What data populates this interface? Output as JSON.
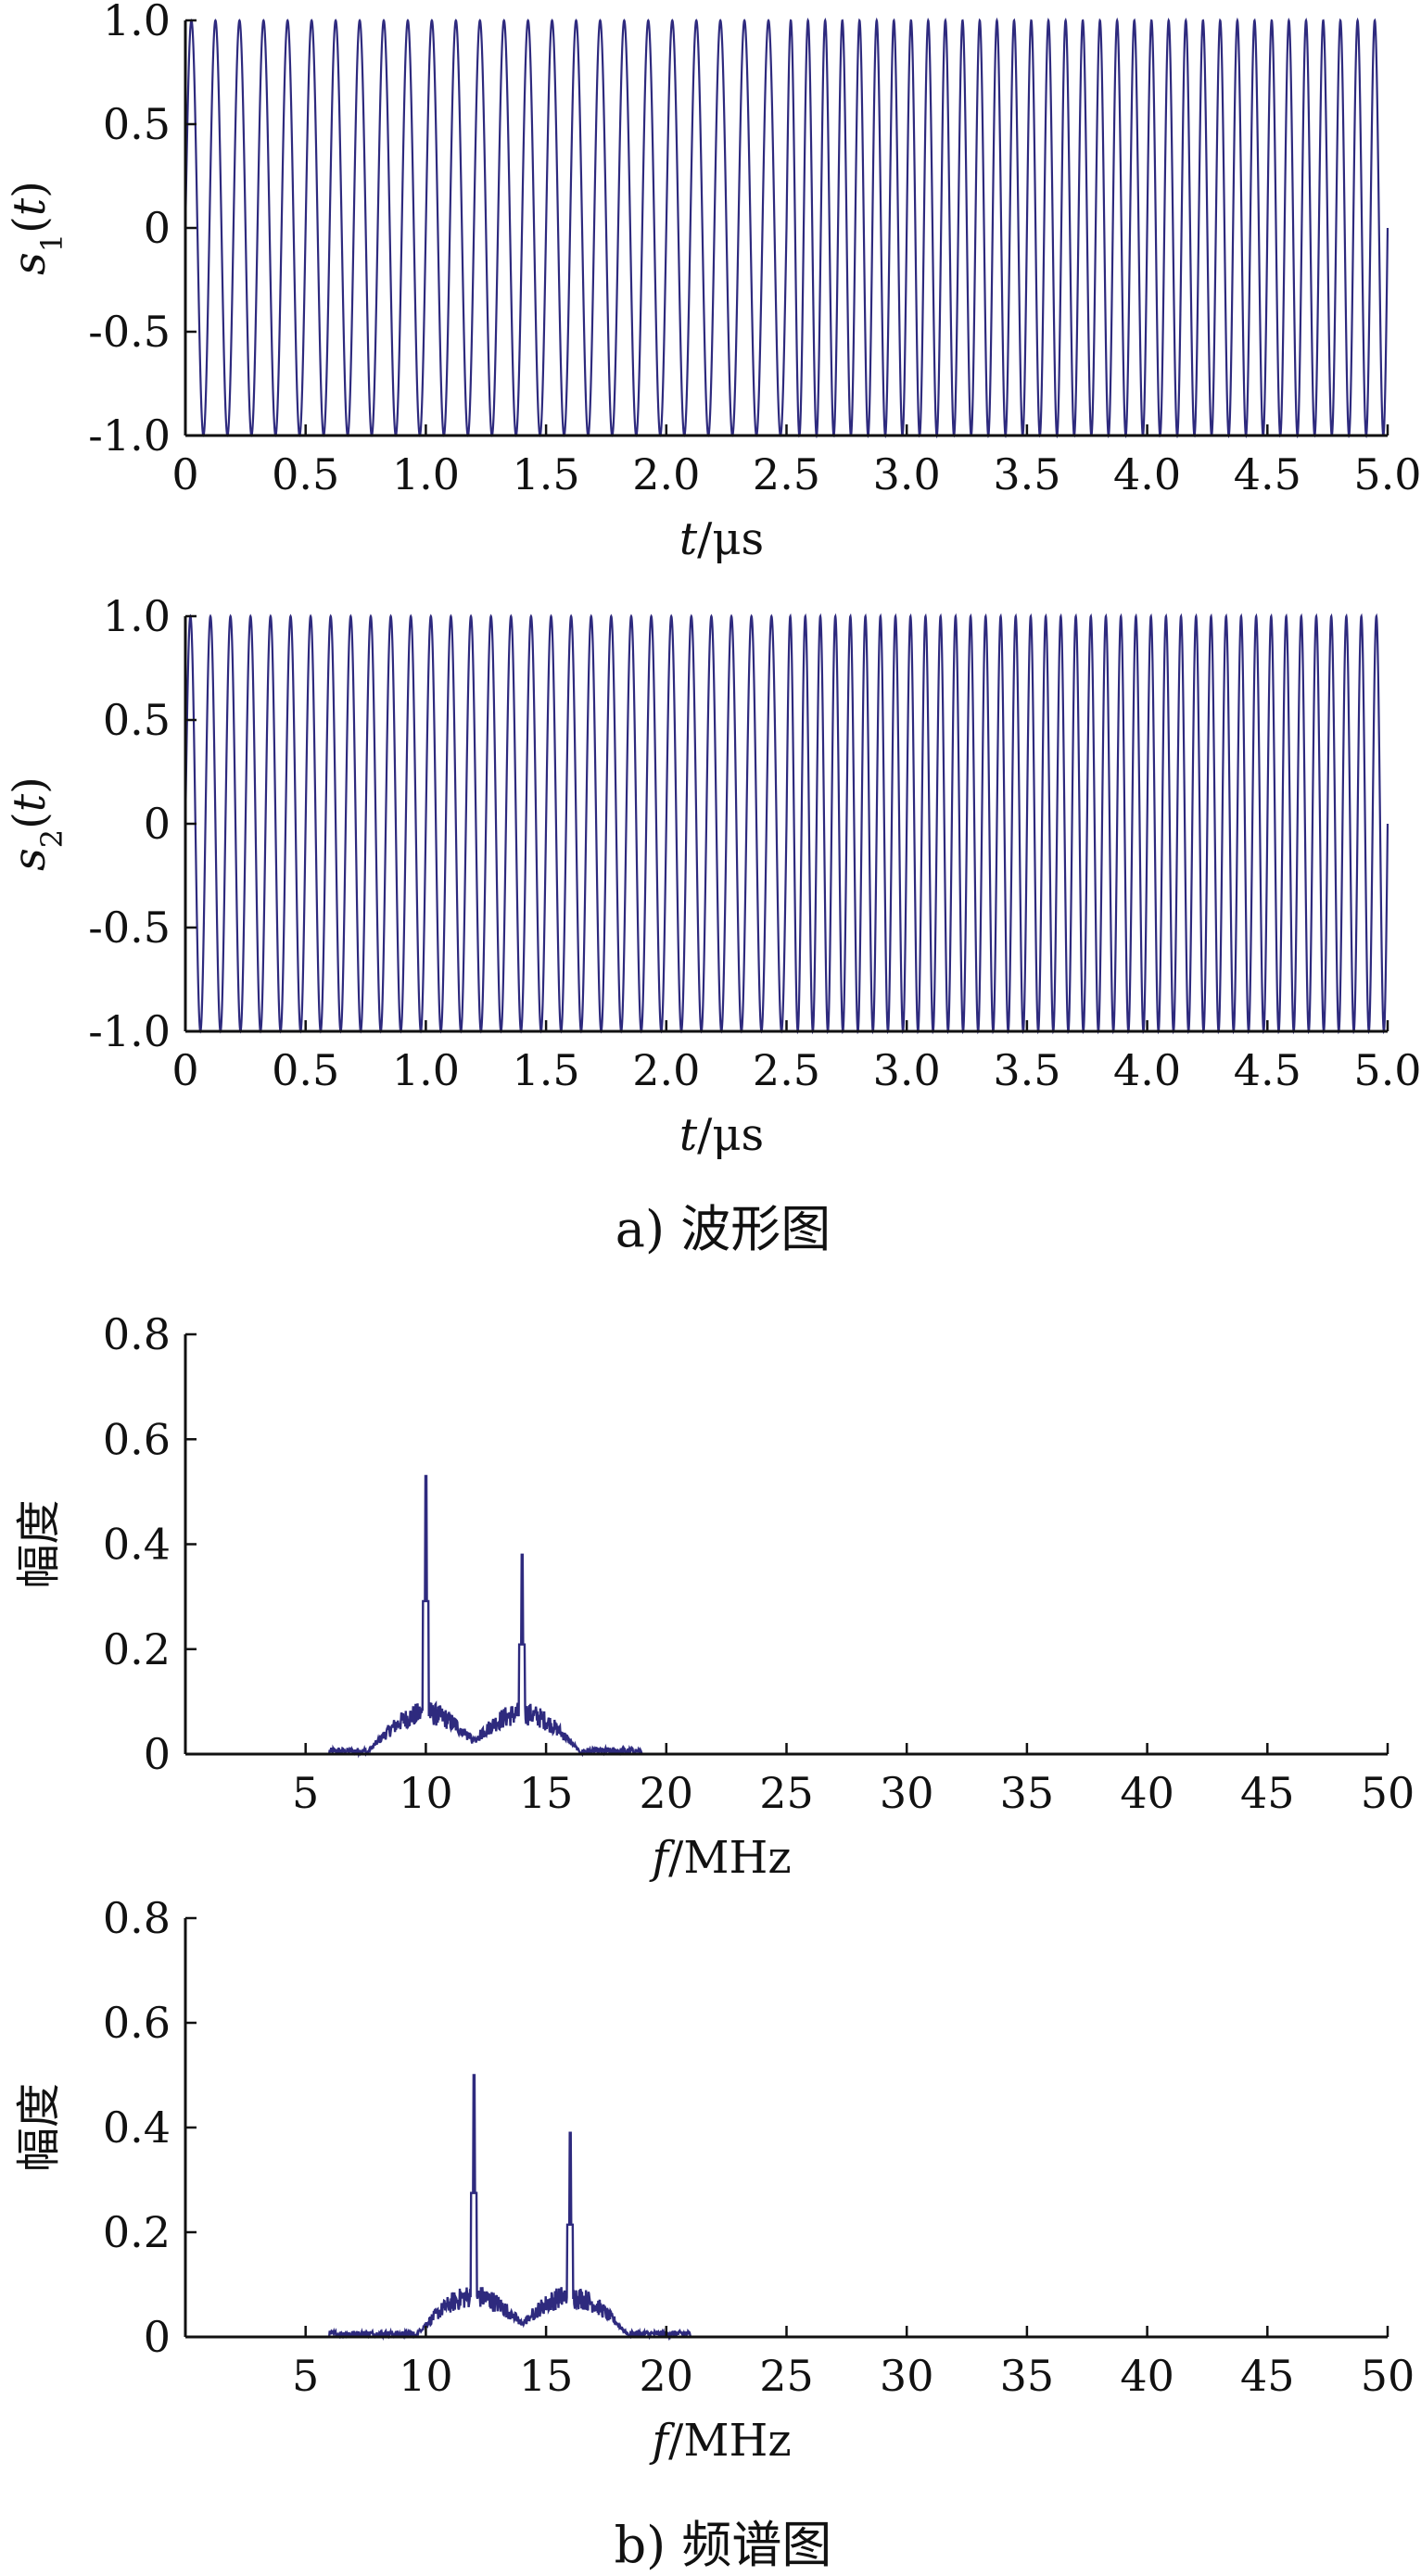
{
  "figure": {
    "caption_a": "a) 波形图",
    "caption_b": "b) 频谱图"
  },
  "colors": {
    "trace": "#2e2a7e",
    "axis": "#111111"
  },
  "chart_data": [
    {
      "type": "line",
      "ylabel_symbol": "s",
      "ylabel_sub": "1",
      "ylabel_arg": "t",
      "xlabel_var": "t",
      "xlabel_unit": "/μs",
      "xlim": [
        0,
        5.0
      ],
      "ylim": [
        -1.0,
        1.0
      ],
      "xticks": [
        "0",
        "0.5",
        "1.0",
        "1.5",
        "2.0",
        "2.5",
        "3.0",
        "3.5",
        "4.0",
        "4.5",
        "5.0"
      ],
      "xtick_values": [
        0,
        0.5,
        1.0,
        1.5,
        2.0,
        2.5,
        3.0,
        3.5,
        4.0,
        4.5,
        5.0
      ],
      "yticks": [
        "1.0",
        "0.5",
        "0",
        "-0.5",
        "-1.0"
      ],
      "ytick_values": [
        1.0,
        0.5,
        0,
        -0.5,
        -1.0
      ],
      "signal": {
        "amplitude": 1.0,
        "frequencies_MHz": [
          10,
          14
        ],
        "duration_us": 5.0
      }
    },
    {
      "type": "line",
      "ylabel_symbol": "s",
      "ylabel_sub": "2",
      "ylabel_arg": "t",
      "xlabel_var": "t",
      "xlabel_unit": "/μs",
      "xlim": [
        0,
        5.0
      ],
      "ylim": [
        -1.0,
        1.0
      ],
      "xticks": [
        "0",
        "0.5",
        "1.0",
        "1.5",
        "2.0",
        "2.5",
        "3.0",
        "3.5",
        "4.0",
        "4.5",
        "5.0"
      ],
      "xtick_values": [
        0,
        0.5,
        1.0,
        1.5,
        2.0,
        2.5,
        3.0,
        3.5,
        4.0,
        4.5,
        5.0
      ],
      "yticks": [
        "1.0",
        "0.5",
        "0",
        "-0.5",
        "-1.0"
      ],
      "ytick_values": [
        1.0,
        0.5,
        0,
        -0.5,
        -1.0
      ],
      "signal": {
        "amplitude": 1.0,
        "frequencies_MHz": [
          12,
          16
        ],
        "duration_us": 5.0
      }
    },
    {
      "type": "line",
      "ylabel": "幅度",
      "xlabel_var": "f",
      "xlabel_unit": "/MHz",
      "xlim": [
        0,
        50
      ],
      "ylim": [
        0,
        0.8
      ],
      "xticks": [
        "5",
        "10",
        "15",
        "20",
        "25",
        "30",
        "35",
        "40",
        "45",
        "50"
      ],
      "xtick_values": [
        5,
        10,
        15,
        20,
        25,
        30,
        35,
        40,
        45,
        50
      ],
      "yticks": [
        "0.8",
        "0.6",
        "0.4",
        "0.2",
        "0"
      ],
      "ytick_values": [
        0.8,
        0.6,
        0.4,
        0.2,
        0
      ],
      "peaks": [
        {
          "f": 10,
          "amplitude": 0.53
        },
        {
          "f": 14,
          "amplitude": 0.38
        }
      ],
      "sidebands": [
        {
          "f": 10,
          "amplitude": 0.1,
          "halfwidth": 2.5
        },
        {
          "f": 14,
          "amplitude": 0.1,
          "halfwidth": 2.5
        }
      ]
    },
    {
      "type": "line",
      "ylabel": "幅度",
      "xlabel_var": "f",
      "xlabel_unit": "/MHz",
      "xlim": [
        0,
        50
      ],
      "ylim": [
        0,
        0.8
      ],
      "xticks": [
        "5",
        "10",
        "15",
        "20",
        "25",
        "30",
        "35",
        "40",
        "45",
        "50"
      ],
      "xtick_values": [
        5,
        10,
        15,
        20,
        25,
        30,
        35,
        40,
        45,
        50
      ],
      "yticks": [
        "0.8",
        "0.6",
        "0.4",
        "0.2",
        "0"
      ],
      "ytick_values": [
        0.8,
        0.6,
        0.4,
        0.2,
        0
      ],
      "peaks": [
        {
          "f": 12,
          "amplitude": 0.5
        },
        {
          "f": 16,
          "amplitude": 0.39
        }
      ],
      "sidebands": [
        {
          "f": 12,
          "amplitude": 0.1,
          "halfwidth": 2.5
        },
        {
          "f": 16,
          "amplitude": 0.1,
          "halfwidth": 2.5
        }
      ]
    }
  ]
}
